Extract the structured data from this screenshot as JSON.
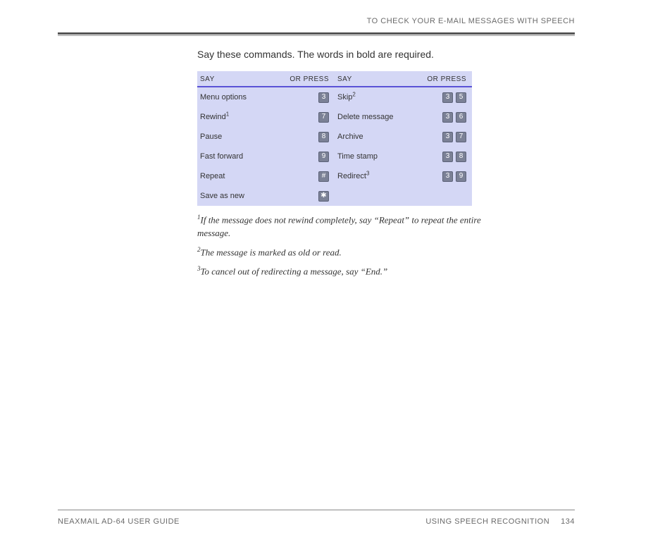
{
  "header": {
    "title": "TO CHECK YOUR E-MAIL MESSAGES WITH SPEECH"
  },
  "intro": "Say these commands. The words in bold are required.",
  "table": {
    "col_headers": {
      "say": "SAY",
      "press": "OR PRESS"
    },
    "left": [
      {
        "say": "Menu options",
        "sup": "",
        "keys": [
          "3"
        ]
      },
      {
        "say": "Rewind",
        "sup": "1",
        "keys": [
          "7"
        ]
      },
      {
        "say": "Pause",
        "sup": "",
        "keys": [
          "8"
        ]
      },
      {
        "say": "Fast forward",
        "sup": "",
        "keys": [
          "9"
        ]
      },
      {
        "say": "Repeat",
        "sup": "",
        "keys": [
          "#"
        ]
      },
      {
        "say": "Save as new",
        "sup": "",
        "keys": [
          "✱"
        ]
      }
    ],
    "right": [
      {
        "say": "Skip",
        "sup": "2",
        "keys": [
          "3",
          "5"
        ]
      },
      {
        "say": "Delete message",
        "sup": "",
        "keys": [
          "3",
          "6"
        ]
      },
      {
        "say": "Archive",
        "sup": "",
        "keys": [
          "3",
          "7"
        ]
      },
      {
        "say": "Time stamp",
        "sup": "",
        "keys": [
          "3",
          "8"
        ]
      },
      {
        "say": "Redirect",
        "sup": "3",
        "keys": [
          "3",
          "9"
        ]
      }
    ],
    "styling": {
      "background_color": "#d4d7f5",
      "header_underline_color": "#5a52d6",
      "key_bg": "#7b8196",
      "key_fg": "#ffffff",
      "font_size_row": 11,
      "font_size_header": 10
    }
  },
  "footnotes": [
    {
      "num": "1",
      "text": "If the message does not rewind completely, say “Repeat” to repeat the entire message."
    },
    {
      "num": "2",
      "text": "The message is marked as old or read."
    },
    {
      "num": "3",
      "text": "To cancel out of redirecting a message, say “End.”"
    }
  ],
  "footer": {
    "left": "NEAXMAIL AD-64 USER GUIDE",
    "right_section": "USING SPEECH RECOGNITION",
    "page_number": "134"
  }
}
